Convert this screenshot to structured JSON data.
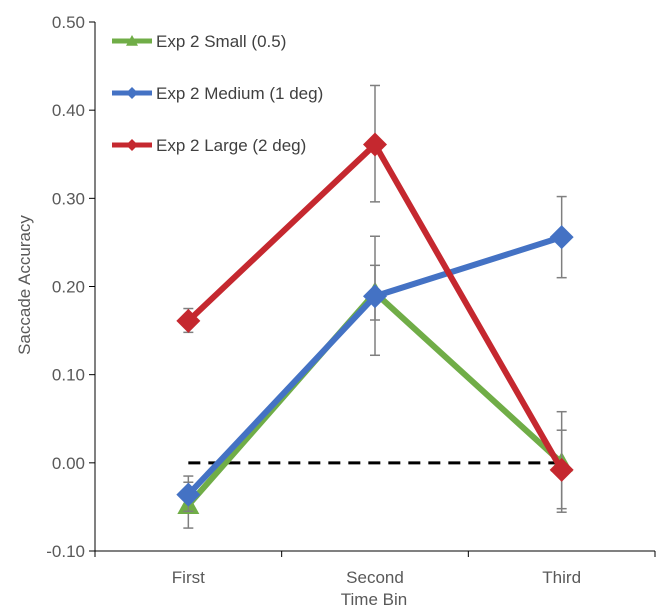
{
  "chart_data": {
    "type": "line",
    "xlabel": "Time Bin",
    "ylabel": "Saccade Accuracy",
    "categories": [
      "First",
      "Second",
      "Third"
    ],
    "ylim": [
      -0.1,
      0.5
    ],
    "yticks": [
      "0.50",
      "0.40",
      "0.30",
      "0.20",
      "0.10",
      "0.00",
      "-0.10"
    ],
    "ytick_values": [
      0.5,
      0.4,
      0.3,
      0.2,
      0.1,
      0.0,
      -0.1
    ],
    "grid": false,
    "legend_position": "top-left",
    "reference_line": {
      "y": 0.0,
      "style": "dashed",
      "color": "#000000"
    },
    "series": [
      {
        "name": "Exp 2 Small (0.5)",
        "color": "#70AD47",
        "marker": "triangle",
        "values": [
          -0.048,
          0.193,
          0.0
        ],
        "error_low": [
          -0.074,
          0.162,
          -0.056
        ],
        "error_high": [
          -0.022,
          0.224,
          0.058
        ]
      },
      {
        "name": "Exp 2 Medium (1 deg)",
        "color": "#4472C4",
        "marker": "diamond",
        "values": [
          -0.036,
          0.189,
          0.256
        ],
        "error_low": [
          -0.055,
          0.122,
          0.21
        ],
        "error_high": [
          -0.015,
          0.257,
          0.302
        ]
      },
      {
        "name": "Exp 2 Large (2 deg)",
        "color": "#C5282F",
        "marker": "diamond",
        "values": [
          0.161,
          0.361,
          -0.008
        ],
        "error_low": [
          0.148,
          0.296,
          -0.052
        ],
        "error_high": [
          0.175,
          0.428,
          0.037
        ]
      }
    ]
  }
}
